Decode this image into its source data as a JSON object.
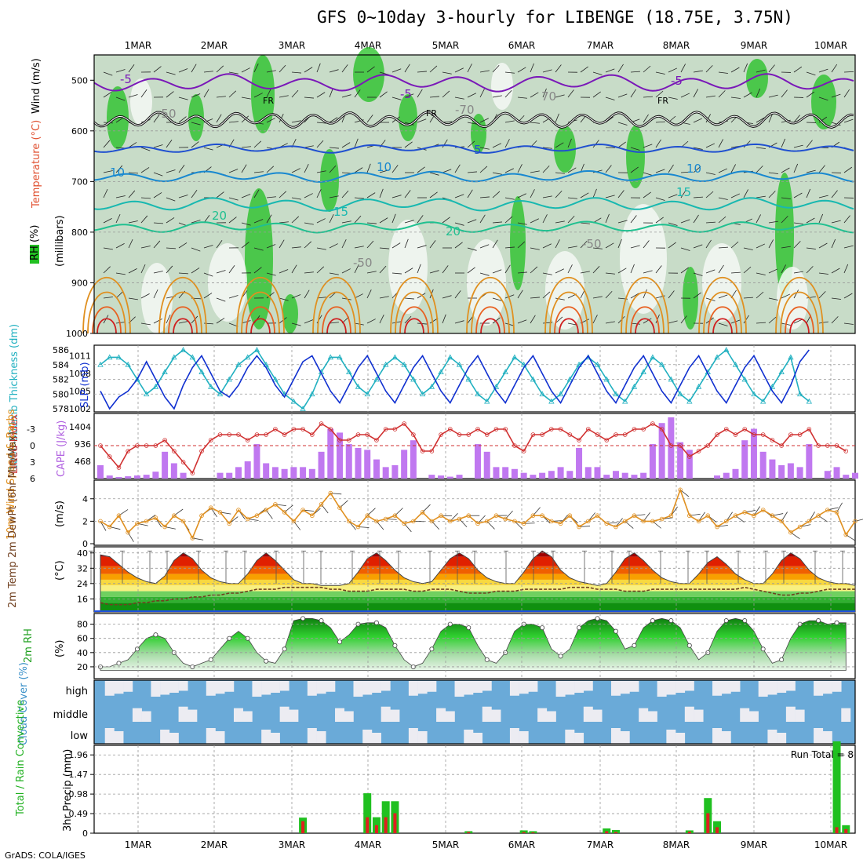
{
  "title": "GFS 0~10day 3-hourly for LIBENGE (18.75E, 3.75N)",
  "credit": "GrADS: COLA/IGES",
  "date_labels": [
    "1MAR",
    "2MAR",
    "3MAR",
    "4MAR",
    "5MAR",
    "6MAR",
    "7MAR",
    "8MAR",
    "9MAR",
    "10MAR"
  ],
  "colors": {
    "rh_green": "#22c022",
    "rh_light": "#c8dcc8",
    "temp_purple": "#7a18b8",
    "temp_blue": "#2050d0",
    "temp_cyan": "#10b0c8",
    "temp_orange": "#e09020",
    "temp_red": "#d02020",
    "slp_line": "#1030d0",
    "thick_line": "#20b0c0",
    "cape_bar": "#c078f0",
    "li_line": "#d03030",
    "wind_line": "#e09020",
    "rh_fill": "#20c020",
    "cloud_blue": "#6aaad8",
    "rain_green": "#20c020",
    "rain_red": "#e02020"
  },
  "panels": {
    "upper": {
      "ylabel_rh": "RH (%)",
      "ylabel_temp": "Temperature (°C)",
      "ylabel_wind": "Wind (m/s)",
      "ylabel_units": "(millibars)",
      "y_ticks": [
        "500",
        "600",
        "700",
        "800",
        "900",
        "1000"
      ],
      "contour_labels": [
        "-5",
        "FR",
        "-5",
        "FR",
        "FR",
        "-5",
        "5",
        "10",
        "10",
        "10",
        "15",
        "15",
        "20",
        "20",
        "-50",
        "-50",
        "-50",
        "70",
        "-70"
      ]
    },
    "slp": {
      "ylabel_left": "1000-500mb Thickness (dm)",
      "ylabel_right": "SLP (mb)",
      "thick_ticks": [
        "586",
        "584",
        "582",
        "580",
        "578"
      ],
      "slp_ticks": [
        "1011",
        "1008",
        "1005",
        "1002"
      ]
    },
    "cape": {
      "ylabel_left": "Lifted Index",
      "ylabel_right": "CAPE (J/kg)",
      "li_ticks": [
        "-3",
        "0",
        "3",
        "6"
      ],
      "cape_ticks": [
        "1404",
        "936",
        "468"
      ]
    },
    "wind": {
      "ylabel": "10m Wind Speed & Barbs",
      "ylabel_units": "(m/s)",
      "y_ticks": [
        "4",
        "2",
        "0"
      ]
    },
    "temp": {
      "ylabel": "2m Temp 2m DewPt (6hr Min/Max)",
      "ylabel_units": "(°C)",
      "y_ticks": [
        "40",
        "32",
        "24",
        "16"
      ]
    },
    "rh": {
      "ylabel": "2m RH",
      "ylabel_units": "(%)",
      "y_ticks": [
        "80",
        "60",
        "40",
        "20"
      ]
    },
    "cloud": {
      "ylabel": "Cloud Cover (%)",
      "levels": [
        "high",
        "middle",
        "low"
      ]
    },
    "precip": {
      "ylabel_left": "Total / Rain Convective",
      "ylabel": "3hr Precip (mm)",
      "y_ticks": [
        "1.96",
        "1.47",
        "0.98",
        "0.49",
        "0"
      ],
      "run_total": "Run Total = 8"
    }
  },
  "chart_data": [
    {
      "type": "area",
      "title": "Upper-air RH / Temperature / Wind",
      "ylabel": "millibars",
      "ylim": [
        1000,
        450
      ],
      "levels": [
        500,
        600,
        700,
        800,
        900,
        1000
      ],
      "temperature_contours_c": [
        -5,
        0,
        5,
        10,
        15,
        20,
        25,
        30,
        35
      ]
    },
    {
      "type": "line",
      "series": [
        {
          "name": "SLP",
          "values": [
            1005,
            1002,
            1004,
            1005,
            1007,
            1010,
            1007,
            1004,
            1002,
            1006,
            1009,
            1011,
            1008,
            1005,
            1004,
            1006,
            1009,
            1011,
            1009,
            1006,
            1004,
            1007,
            1010,
            1011,
            1008,
            1005,
            1003,
            1006,
            1009,
            1011,
            1008,
            1005,
            1003,
            1006,
            1009,
            1011,
            1008,
            1005,
            1003,
            1006,
            1009,
            1011,
            1008,
            1005,
            1003,
            1006,
            1009,
            1011,
            1008,
            1005,
            1003,
            1006,
            1009,
            1011,
            1008,
            1005,
            1003,
            1006,
            1009,
            1011,
            1008,
            1005,
            1003,
            1006,
            1009,
            1011,
            1008,
            1005,
            1003,
            1006,
            1009,
            1011,
            1008,
            1005,
            1003,
            1006,
            1010,
            1012
          ]
        },
        {
          "name": "1000-500mb Thickness",
          "values": [
            584,
            585,
            585,
            584,
            582,
            580,
            581,
            583,
            585,
            586,
            585,
            583,
            581,
            580,
            582,
            584,
            585,
            586,
            584,
            582,
            580,
            579,
            578,
            580,
            583,
            585,
            585,
            583,
            581,
            580,
            582,
            584,
            585,
            584,
            582,
            580,
            581,
            583,
            585,
            584,
            582,
            580,
            579,
            581,
            583,
            585,
            584,
            582,
            580,
            579,
            580,
            582,
            584,
            585,
            584,
            582,
            580,
            579,
            581,
            583,
            585,
            584,
            582,
            580,
            579,
            581,
            583,
            585,
            586,
            584,
            582,
            580,
            579,
            581,
            583,
            585,
            580,
            579
          ]
        }
      ]
    },
    {
      "type": "bar",
      "series": [
        {
          "name": "CAPE",
          "values": [
            350,
            80,
            40,
            60,
            80,
            100,
            180,
            700,
            400,
            150,
            0,
            0,
            0,
            150,
            150,
            300,
            450,
            900,
            400,
            300,
            250,
            300,
            300,
            250,
            700,
            1300,
            1200,
            900,
            800,
            750,
            500,
            300,
            350,
            750,
            1000,
            0,
            100,
            80,
            50,
            100,
            0,
            900,
            700,
            300,
            300,
            250,
            150,
            100,
            150,
            200,
            300,
            200,
            800,
            300,
            300,
            100,
            200,
            150,
            100,
            150,
            900,
            1450,
            1600,
            950,
            750,
            0,
            0,
            80,
            150,
            250,
            1000,
            1300,
            700,
            500,
            350,
            400,
            300,
            900,
            0,
            200,
            300,
            100,
            150
          ]
        },
        {
          "name": "Lifted Index",
          "values": [
            0,
            2,
            4,
            1,
            0,
            0,
            0,
            -1,
            1,
            3,
            5,
            1,
            -1,
            -2,
            -2,
            -2,
            -1,
            -2,
            -2,
            -3,
            -2,
            -3,
            -3,
            -2,
            -4,
            -3,
            -1,
            -1,
            -2,
            -2,
            -1,
            -3,
            -3,
            -4,
            -2,
            1,
            1,
            -2,
            -3,
            -2,
            -2,
            -3,
            -2,
            -3,
            -3,
            0,
            1,
            -2,
            -2,
            -3,
            -3,
            -2,
            -1,
            -3,
            -2,
            -1,
            -2,
            -2,
            -3,
            -3,
            -4,
            -3,
            0,
            0,
            2,
            1,
            0,
            -2,
            -3,
            -2,
            -3,
            -2,
            -2,
            -1,
            0,
            -2,
            -2,
            -3,
            0,
            0,
            0,
            1
          ]
        }
      ]
    },
    {
      "type": "line",
      "series": [
        {
          "name": "10m Wind Speed",
          "values": [
            2.0,
            1.5,
            2.5,
            1.0,
            1.8,
            2.0,
            2.3,
            1.5,
            2.5,
            2.0,
            0.5,
            2.5,
            3.2,
            2.8,
            1.8,
            3.0,
            2.2,
            2.5,
            3.0,
            3.5,
            2.8,
            2.0,
            3.0,
            2.5,
            3.5,
            4.5,
            3.2,
            2.0,
            1.5,
            2.5,
            2.0,
            2.2,
            2.5,
            1.8,
            2.0,
            2.8,
            2.0,
            2.5,
            2.0,
            2.2,
            2.5,
            1.8,
            2.0,
            2.5,
            2.2,
            2.0,
            1.8,
            2.5,
            2.5,
            2.0,
            1.8,
            2.5,
            1.5,
            2.0,
            2.5,
            1.8,
            1.5,
            2.0,
            2.5,
            2.0,
            2.0,
            2.2,
            2.5,
            4.8,
            2.5,
            2.0,
            2.5,
            1.5,
            2.0,
            2.5,
            2.8,
            2.5,
            3.0,
            2.5,
            2.0,
            1.0,
            1.5,
            2.0,
            2.5,
            3.0,
            2.8,
            0.8,
            2.0
          ]
        }
      ]
    },
    {
      "type": "area",
      "series": [
        {
          "name": "2m Temp",
          "values": [
            39,
            38,
            34,
            30,
            27,
            25,
            24,
            28,
            36,
            40,
            37,
            31,
            27,
            25,
            24,
            24,
            29,
            36,
            40,
            36,
            31,
            26,
            24,
            24,
            23,
            23,
            23,
            24,
            30,
            37,
            40,
            36,
            31,
            27,
            25,
            24,
            25,
            31,
            37,
            40,
            37,
            31,
            27,
            25,
            24,
            24,
            30,
            37,
            41,
            38,
            31,
            27,
            25,
            24,
            23,
            24,
            30,
            37,
            40,
            36,
            31,
            27,
            25,
            24,
            24,
            29,
            35,
            38,
            34,
            29,
            26,
            24,
            24,
            29,
            36,
            40,
            37,
            31,
            27,
            25,
            24,
            24,
            23
          ]
        },
        {
          "name": "2m DewPt",
          "values": [
            14,
            13,
            13,
            13,
            14,
            14,
            15,
            15,
            16,
            16,
            17,
            17,
            18,
            18,
            19,
            19,
            20,
            21,
            21,
            21,
            22,
            22,
            22,
            22,
            22,
            21,
            21,
            20,
            20,
            20,
            21,
            21,
            21,
            21,
            20,
            20,
            21,
            21,
            21,
            20,
            19,
            19,
            19,
            20,
            20,
            20,
            21,
            21,
            21,
            21,
            21,
            22,
            22,
            22,
            21,
            21,
            21,
            20,
            20,
            20,
            21,
            21,
            21,
            21,
            21,
            21,
            21,
            21,
            21,
            21,
            22,
            21,
            20,
            19,
            18,
            18,
            19,
            19,
            20,
            21,
            21,
            21,
            21
          ]
        }
      ]
    },
    {
      "type": "area",
      "series": [
        {
          "name": "2m RH",
          "values": [
            20,
            20,
            25,
            30,
            45,
            60,
            65,
            60,
            40,
            25,
            20,
            25,
            30,
            45,
            60,
            70,
            60,
            40,
            28,
            25,
            45,
            85,
            88,
            88,
            85,
            75,
            55,
            65,
            80,
            82,
            82,
            75,
            50,
            30,
            20,
            25,
            45,
            70,
            80,
            80,
            75,
            50,
            30,
            25,
            40,
            70,
            80,
            80,
            75,
            45,
            35,
            45,
            75,
            85,
            88,
            85,
            70,
            45,
            50,
            75,
            85,
            88,
            85,
            75,
            50,
            30,
            40,
            70,
            85,
            88,
            85,
            70,
            45,
            25,
            30,
            60,
            80,
            85,
            85,
            80,
            82,
            82
          ]
        }
      ]
    },
    {
      "type": "bar",
      "title": "Cloud Cover",
      "categories": [
        "high",
        "middle",
        "low"
      ]
    },
    {
      "type": "bar",
      "ylabel": "3hr Precip (mm)",
      "ylim": [
        0,
        2.2
      ],
      "series": [
        {
          "name": "Total",
          "values": [
            0,
            0,
            0,
            0,
            0,
            0,
            0,
            0,
            0,
            0,
            0,
            0,
            0,
            0,
            0,
            0,
            0,
            0,
            0,
            0,
            0,
            0,
            0.39,
            0,
            0,
            0,
            0,
            0,
            0,
            1.0,
            0.4,
            0.8,
            0.8,
            0,
            0,
            0,
            0,
            0,
            0,
            0,
            0.05,
            0,
            0,
            0,
            0,
            0,
            0.07,
            0.05,
            0,
            0,
            0,
            0,
            0,
            0,
            0,
            0.12,
            0.08,
            0,
            0,
            0,
            0,
            0,
            0,
            0,
            0.07,
            0,
            0.88,
            0.3,
            0,
            0,
            0,
            0,
            0,
            0,
            0,
            0,
            0,
            0,
            0,
            0,
            2.3,
            0.2,
            0
          ]
        },
        {
          "name": "Convective",
          "values": [
            0,
            0,
            0,
            0,
            0,
            0,
            0,
            0,
            0,
            0,
            0,
            0,
            0,
            0,
            0,
            0,
            0,
            0,
            0,
            0,
            0,
            0,
            0.3,
            0,
            0,
            0,
            0,
            0,
            0,
            0.4,
            0.2,
            0.4,
            0.5,
            0,
            0,
            0,
            0,
            0,
            0,
            0,
            0.03,
            0,
            0,
            0,
            0,
            0,
            0.03,
            0.02,
            0,
            0,
            0,
            0,
            0,
            0,
            0,
            0.05,
            0.03,
            0,
            0,
            0,
            0,
            0,
            0,
            0,
            0.04,
            0,
            0.5,
            0.15,
            0,
            0,
            0,
            0,
            0,
            0,
            0,
            0,
            0,
            0,
            0,
            0,
            0.15,
            0.1,
            0
          ]
        }
      ]
    }
  ]
}
